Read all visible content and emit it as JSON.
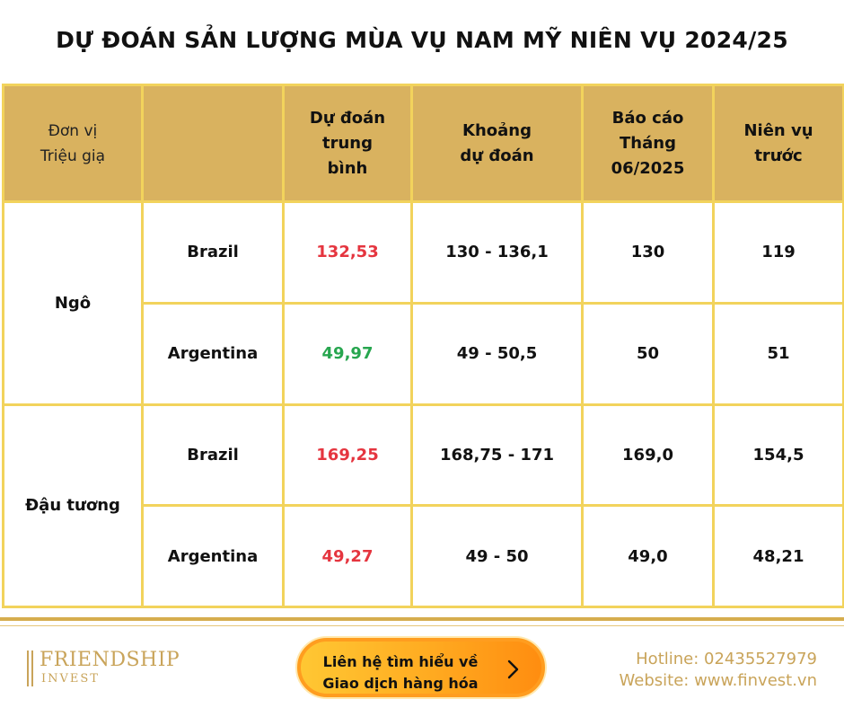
{
  "title": "DỰ ĐOÁN SẢN LƯỢNG MÙA VỤ NAM MỸ NIÊN VỤ 2024/25",
  "header": {
    "unit_line1": "Đơn vị",
    "unit_line2": "Triệu giạ",
    "col_avg": [
      "Dự đoán",
      "trung",
      "bình"
    ],
    "col_range": [
      "Khoảng",
      "dự đoán"
    ],
    "col_report": [
      "Báo cáo",
      "Tháng",
      "06/2025"
    ],
    "col_prev": [
      "Niên vụ",
      "trước"
    ]
  },
  "rows": [
    {
      "commodity": "Ngô",
      "entries": [
        {
          "country": "Brazil",
          "avg": "132,53",
          "range": "130 - 136,1",
          "report": "130",
          "prev": "119"
        },
        {
          "country": "Argentina",
          "avg": "49,97",
          "range": "49 - 50,5",
          "report": "50",
          "prev": "51"
        }
      ]
    },
    {
      "commodity": "Đậu tương",
      "entries": [
        {
          "country": "Brazil",
          "avg": "169,25",
          "range": "168,75 - 171",
          "report": "169,0",
          "prev": "154,5"
        },
        {
          "country": "Argentina",
          "avg": "49,27",
          "range": "49 - 50",
          "report": "49,0",
          "prev": "48,21"
        }
      ]
    }
  ],
  "colors": {
    "red": "#e5353f",
    "green": "#27a64f",
    "header_bg": "#d9b25f",
    "border": "#f2d35c",
    "gold_text": "#c9a45a"
  },
  "footer": {
    "logo_name": "FRIENDSHIP",
    "logo_sub": "INVEST",
    "cta_line1": "Liên hệ tìm hiểu về",
    "cta_line2": "Giao dịch hàng hóa",
    "cta_icon": "chevron-right-icon",
    "hotline": "Hotline: 02435527979",
    "website": "Website: www.finvest.vn"
  }
}
